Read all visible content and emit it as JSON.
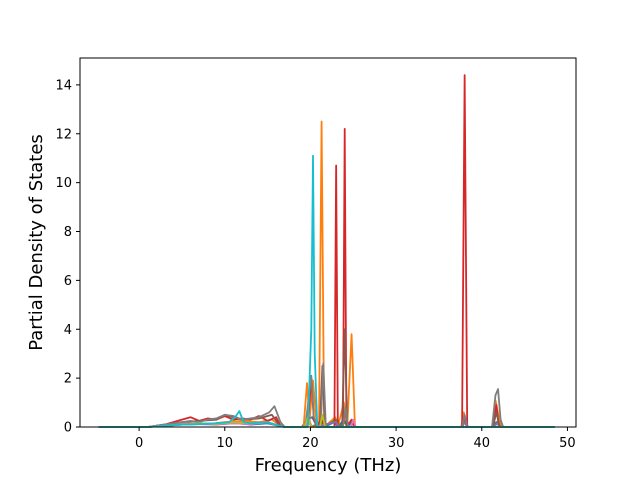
{
  "chart_data": {
    "type": "line",
    "title": "",
    "xlabel": "Frequency (THz)",
    "ylabel": "Partial Density of States",
    "xlim": [
      -6.9,
      51.0
    ],
    "ylim": [
      0,
      15.1
    ],
    "xticks": [
      0,
      10,
      20,
      30,
      40,
      50
    ],
    "yticks": [
      0,
      2,
      4,
      6,
      8,
      10,
      12,
      14
    ],
    "grid": false,
    "legend": "none",
    "series": [
      {
        "color": "#1f77b4",
        "points": [
          [
            -4.7,
            0
          ],
          [
            1.0,
            0
          ],
          [
            3.0,
            0.05
          ],
          [
            5.0,
            0.12
          ],
          [
            7.0,
            0.15
          ],
          [
            9.0,
            0.12
          ],
          [
            11.0,
            0.18
          ],
          [
            13.0,
            0.1
          ],
          [
            15.0,
            0.15
          ],
          [
            16.3,
            0.05
          ],
          [
            17.0,
            0
          ],
          [
            19.0,
            0
          ],
          [
            19.6,
            0.3
          ],
          [
            20.2,
            0.4
          ],
          [
            20.8,
            0
          ],
          [
            21.2,
            0.3
          ],
          [
            21.6,
            0
          ],
          [
            22.8,
            0.2
          ],
          [
            23.2,
            0
          ],
          [
            23.9,
            0.3
          ],
          [
            24.3,
            0
          ],
          [
            24.8,
            0.2
          ],
          [
            25.3,
            0
          ],
          [
            37.6,
            0
          ],
          [
            38.0,
            0.3
          ],
          [
            38.4,
            0
          ],
          [
            41.2,
            0
          ],
          [
            41.7,
            0.2
          ],
          [
            42.2,
            0
          ],
          [
            48.5,
            0
          ]
        ]
      },
      {
        "color": "#ff7f0e",
        "points": [
          [
            -4.7,
            0
          ],
          [
            1.0,
            0
          ],
          [
            2.0,
            0.03
          ],
          [
            4.0,
            0.1
          ],
          [
            6.0,
            0.15
          ],
          [
            8.0,
            0.12
          ],
          [
            10.0,
            0.2
          ],
          [
            12.0,
            0.25
          ],
          [
            14.0,
            0.2
          ],
          [
            15.5,
            0.3
          ],
          [
            16.3,
            0.1
          ],
          [
            17.0,
            0
          ],
          [
            19.2,
            0
          ],
          [
            19.6,
            1.8
          ],
          [
            19.9,
            0.3
          ],
          [
            20.3,
            1.9
          ],
          [
            20.7,
            0.2
          ],
          [
            21.0,
            0
          ],
          [
            21.3,
            12.5
          ],
          [
            21.6,
            0
          ],
          [
            22.9,
            0.4
          ],
          [
            23.2,
            0
          ],
          [
            23.9,
            1.0
          ],
          [
            24.3,
            0
          ],
          [
            24.8,
            3.8
          ],
          [
            25.2,
            0
          ],
          [
            37.6,
            0
          ],
          [
            37.9,
            0.6
          ],
          [
            38.3,
            0
          ],
          [
            41.2,
            0
          ],
          [
            41.6,
            1.1
          ],
          [
            42.0,
            0.4
          ],
          [
            42.3,
            0
          ],
          [
            48.5,
            0
          ]
        ]
      },
      {
        "color": "#2ca02c",
        "points": [
          [
            -4.7,
            0
          ],
          [
            1.0,
            0
          ],
          [
            3.0,
            0.05
          ],
          [
            5.0,
            0.1
          ],
          [
            7.0,
            0.12
          ],
          [
            9.0,
            0.15
          ],
          [
            11.0,
            0.2
          ],
          [
            13.0,
            0.15
          ],
          [
            15.0,
            0.2
          ],
          [
            16.3,
            0.05
          ],
          [
            17.0,
            0
          ],
          [
            19.3,
            0
          ],
          [
            19.7,
            0.3
          ],
          [
            20.1,
            0
          ],
          [
            21.2,
            0.2
          ],
          [
            21.5,
            0
          ],
          [
            23.0,
            0.3
          ],
          [
            23.3,
            0
          ],
          [
            24.1,
            0.2
          ],
          [
            24.4,
            0
          ],
          [
            37.7,
            0
          ],
          [
            38.0,
            0.2
          ],
          [
            38.3,
            0
          ],
          [
            41.4,
            0
          ],
          [
            41.8,
            0.2
          ],
          [
            42.2,
            0
          ],
          [
            48.5,
            0
          ]
        ]
      },
      {
        "color": "#d62728",
        "points": [
          [
            -4.7,
            0
          ],
          [
            1.0,
            0
          ],
          [
            2.0,
            0.05
          ],
          [
            3.0,
            0.1
          ],
          [
            4.0,
            0.2
          ],
          [
            5.0,
            0.3
          ],
          [
            6.0,
            0.4
          ],
          [
            7.0,
            0.25
          ],
          [
            8.0,
            0.35
          ],
          [
            9.0,
            0.3
          ],
          [
            10.0,
            0.45
          ],
          [
            11.0,
            0.3
          ],
          [
            12.0,
            0.35
          ],
          [
            13.0,
            0.3
          ],
          [
            14.0,
            0.45
          ],
          [
            15.0,
            0.25
          ],
          [
            16.0,
            0.4
          ],
          [
            16.5,
            0.05
          ],
          [
            17.0,
            0
          ],
          [
            19.4,
            0
          ],
          [
            19.8,
            0.6
          ],
          [
            20.1,
            2.0
          ],
          [
            20.4,
            0.3
          ],
          [
            20.8,
            0
          ],
          [
            21.3,
            0.4
          ],
          [
            21.6,
            0
          ],
          [
            22.8,
            0
          ],
          [
            23.0,
            10.7
          ],
          [
            23.2,
            0
          ],
          [
            23.8,
            0
          ],
          [
            24.0,
            12.2
          ],
          [
            24.2,
            0
          ],
          [
            24.8,
            0.3
          ],
          [
            25.1,
            0
          ],
          [
            37.7,
            0
          ],
          [
            38.0,
            14.4
          ],
          [
            38.3,
            0
          ],
          [
            41.3,
            0
          ],
          [
            41.7,
            0.9
          ],
          [
            42.0,
            0
          ],
          [
            48.5,
            0
          ]
        ]
      },
      {
        "color": "#9467bd",
        "points": [
          [
            -4.7,
            0
          ],
          [
            1.0,
            0
          ],
          [
            3.0,
            0.04
          ],
          [
            5.0,
            0.1
          ],
          [
            7.0,
            0.12
          ],
          [
            9.0,
            0.1
          ],
          [
            11.0,
            0.15
          ],
          [
            13.0,
            0.12
          ],
          [
            15.0,
            0.18
          ],
          [
            16.3,
            0.05
          ],
          [
            17.0,
            0
          ],
          [
            19.4,
            0
          ],
          [
            19.8,
            0.2
          ],
          [
            20.2,
            0
          ],
          [
            23.0,
            0.2
          ],
          [
            23.3,
            0
          ],
          [
            37.7,
            0
          ],
          [
            38.0,
            0.2
          ],
          [
            38.3,
            0
          ],
          [
            41.4,
            0
          ],
          [
            41.8,
            0.15
          ],
          [
            42.2,
            0
          ],
          [
            48.5,
            0
          ]
        ]
      },
      {
        "color": "#8c564b",
        "points": [
          [
            -4.7,
            0
          ],
          [
            1.0,
            0
          ],
          [
            3.0,
            0.1
          ],
          [
            5.0,
            0.2
          ],
          [
            7.0,
            0.25
          ],
          [
            9.0,
            0.3
          ],
          [
            10.0,
            0.5
          ],
          [
            11.0,
            0.4
          ],
          [
            12.0,
            0.3
          ],
          [
            14.0,
            0.35
          ],
          [
            15.5,
            0.5
          ],
          [
            16.3,
            0.1
          ],
          [
            17.0,
            0
          ],
          [
            19.3,
            0
          ],
          [
            19.7,
            0.5
          ],
          [
            20.1,
            0
          ],
          [
            21.1,
            0
          ],
          [
            21.4,
            2.5
          ],
          [
            21.7,
            0
          ],
          [
            23.7,
            0
          ],
          [
            24.0,
            4.0
          ],
          [
            24.3,
            0
          ],
          [
            37.7,
            0
          ],
          [
            38.0,
            0.4
          ],
          [
            38.3,
            0
          ],
          [
            41.3,
            0
          ],
          [
            41.7,
            0.6
          ],
          [
            42.1,
            0
          ],
          [
            48.5,
            0
          ]
        ]
      },
      {
        "color": "#e377c2",
        "points": [
          [
            -4.7,
            0
          ],
          [
            1.0,
            0
          ],
          [
            3.0,
            0.05
          ],
          [
            5.0,
            0.12
          ],
          [
            7.0,
            0.15
          ],
          [
            9.0,
            0.12
          ],
          [
            11.0,
            0.15
          ],
          [
            13.0,
            0.12
          ],
          [
            15.0,
            0.2
          ],
          [
            16.3,
            0.05
          ],
          [
            17.0,
            0
          ],
          [
            19.4,
            0
          ],
          [
            19.8,
            0.3
          ],
          [
            20.2,
            0
          ],
          [
            24.7,
            0
          ],
          [
            25.0,
            0.3
          ],
          [
            25.3,
            0
          ],
          [
            48.5,
            0
          ]
        ]
      },
      {
        "color": "#7f7f7f",
        "points": [
          [
            -4.7,
            0
          ],
          [
            1.0,
            0
          ],
          [
            2.0,
            0.05
          ],
          [
            3.0,
            0.1
          ],
          [
            4.0,
            0.15
          ],
          [
            5.0,
            0.2
          ],
          [
            6.0,
            0.25
          ],
          [
            7.0,
            0.2
          ],
          [
            8.0,
            0.3
          ],
          [
            9.0,
            0.35
          ],
          [
            10.0,
            0.5
          ],
          [
            11.0,
            0.45
          ],
          [
            12.0,
            0.3
          ],
          [
            13.0,
            0.35
          ],
          [
            14.0,
            0.4
          ],
          [
            15.2,
            0.6
          ],
          [
            15.8,
            0.85
          ],
          [
            16.5,
            0.2
          ],
          [
            17.0,
            0
          ],
          [
            19.4,
            0
          ],
          [
            19.8,
            1.2
          ],
          [
            20.1,
            2.1
          ],
          [
            20.4,
            0.4
          ],
          [
            20.8,
            0
          ],
          [
            21.2,
            0
          ],
          [
            21.5,
            2.6
          ],
          [
            21.8,
            0
          ],
          [
            23.8,
            0
          ],
          [
            24.1,
            0.8
          ],
          [
            24.4,
            0
          ],
          [
            37.7,
            0
          ],
          [
            38.0,
            0.5
          ],
          [
            38.3,
            0
          ],
          [
            41.2,
            0
          ],
          [
            41.6,
            1.3
          ],
          [
            41.9,
            1.55
          ],
          [
            42.2,
            0.3
          ],
          [
            42.5,
            0
          ],
          [
            48.5,
            0
          ]
        ]
      },
      {
        "color": "#bcbd22",
        "points": [
          [
            -4.7,
            0
          ],
          [
            1.0,
            0
          ],
          [
            3.0,
            0.05
          ],
          [
            5.0,
            0.1
          ],
          [
            7.0,
            0.15
          ],
          [
            9.0,
            0.12
          ],
          [
            11.0,
            0.2
          ],
          [
            13.0,
            0.15
          ],
          [
            15.0,
            0.2
          ],
          [
            16.3,
            0.05
          ],
          [
            17.0,
            0
          ],
          [
            19.3,
            0
          ],
          [
            19.7,
            0.4
          ],
          [
            20.1,
            0
          ],
          [
            21.1,
            0
          ],
          [
            21.4,
            0.5
          ],
          [
            21.7,
            0
          ],
          [
            48.5,
            0
          ]
        ]
      },
      {
        "color": "#17becf",
        "points": [
          [
            -4.7,
            0
          ],
          [
            1.0,
            0
          ],
          [
            3.0,
            0.05
          ],
          [
            5.0,
            0.1
          ],
          [
            7.0,
            0.12
          ],
          [
            9.0,
            0.15
          ],
          [
            10.5,
            0.2
          ],
          [
            11.2,
            0.4
          ],
          [
            11.7,
            0.65
          ],
          [
            12.2,
            0.2
          ],
          [
            13.0,
            0.15
          ],
          [
            15.0,
            0.2
          ],
          [
            16.3,
            0.05
          ],
          [
            17.0,
            0
          ],
          [
            19.7,
            0
          ],
          [
            20.1,
            4.0
          ],
          [
            20.3,
            11.1
          ],
          [
            20.5,
            3.0
          ],
          [
            20.8,
            0
          ],
          [
            48.5,
            0
          ]
        ]
      }
    ]
  }
}
